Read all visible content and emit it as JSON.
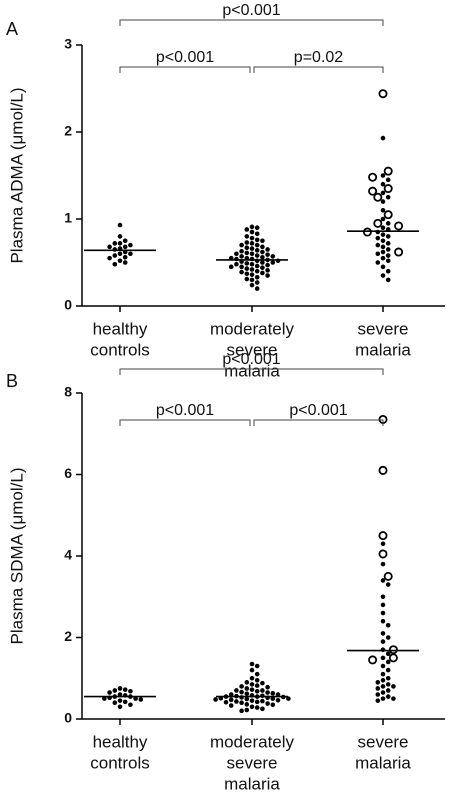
{
  "chart_data": [
    {
      "type": "dot",
      "panel": "A",
      "y_label": "Plasma ADMA (μmol/L)",
      "categories": [
        [
          "healthy",
          "controls"
        ],
        [
          "moderately",
          "severe",
          "malaria"
        ],
        [
          "severe",
          "malaria"
        ]
      ],
      "ylim": [
        0,
        3
      ],
      "yticks": [
        0,
        1,
        2,
        3
      ],
      "groups": [
        {
          "values": [
            0.93,
            0.8,
            0.75,
            0.72,
            0.72,
            0.7,
            0.68,
            0.68,
            0.66,
            0.65,
            0.62,
            0.6,
            0.6,
            0.58,
            0.56,
            0.55,
            0.52,
            0.5,
            0.48
          ],
          "open_values": [],
          "median": 0.64
        },
        {
          "values": [
            0.91,
            0.9,
            0.88,
            0.85,
            0.83,
            0.8,
            0.78,
            0.76,
            0.75,
            0.73,
            0.72,
            0.7,
            0.7,
            0.68,
            0.67,
            0.66,
            0.65,
            0.64,
            0.63,
            0.62,
            0.61,
            0.6,
            0.6,
            0.59,
            0.58,
            0.57,
            0.57,
            0.56,
            0.55,
            0.55,
            0.54,
            0.54,
            0.53,
            0.52,
            0.52,
            0.51,
            0.5,
            0.5,
            0.49,
            0.48,
            0.48,
            0.47,
            0.46,
            0.45,
            0.45,
            0.44,
            0.43,
            0.42,
            0.41,
            0.4,
            0.39,
            0.38,
            0.37,
            0.36,
            0.35,
            0.33,
            0.31,
            0.3,
            0.27,
            0.24,
            0.2
          ],
          "open_values": [],
          "median": 0.53
        },
        {
          "values": [
            1.93,
            1.5,
            1.45,
            1.4,
            1.3,
            1.25,
            1.2,
            1.1,
            1.0,
            0.95,
            0.9,
            0.88,
            0.85,
            0.82,
            0.8,
            0.78,
            0.75,
            0.72,
            0.7,
            0.68,
            0.65,
            0.62,
            0.6,
            0.58,
            0.55,
            0.52,
            0.5,
            0.45,
            0.4,
            0.35,
            0.3
          ],
          "open_values": [
            2.44,
            1.55,
            1.48,
            1.35,
            1.32,
            1.25,
            1.05,
            0.95,
            0.92,
            0.85,
            0.62
          ],
          "median": 0.86
        }
      ],
      "comparisons": [
        {
          "groups": [
            0,
            2
          ],
          "label": "p<0.001"
        },
        {
          "groups": [
            0,
            1
          ],
          "label": "p<0.001"
        },
        {
          "groups": [
            1,
            2
          ],
          "label": "p=0.02"
        }
      ]
    },
    {
      "type": "dot",
      "panel": "B",
      "y_label": "Plasma SDMA (μmol/L)",
      "categories": [
        [
          "healthy",
          "controls"
        ],
        [
          "moderately",
          "severe",
          "malaria"
        ],
        [
          "severe",
          "malaria"
        ]
      ],
      "ylim": [
        0,
        8
      ],
      "yticks": [
        0,
        2,
        4,
        6,
        8
      ],
      "groups": [
        {
          "values": [
            0.75,
            0.72,
            0.7,
            0.68,
            0.65,
            0.6,
            0.58,
            0.55,
            0.55,
            0.52,
            0.5,
            0.5,
            0.48,
            0.45,
            0.42,
            0.4,
            0.35,
            0.3
          ],
          "open_values": [],
          "median": 0.55
        },
        {
          "values": [
            1.35,
            1.3,
            1.2,
            1.1,
            1.0,
            0.95,
            0.9,
            0.88,
            0.85,
            0.82,
            0.8,
            0.78,
            0.75,
            0.72,
            0.7,
            0.7,
            0.68,
            0.66,
            0.65,
            0.63,
            0.62,
            0.6,
            0.6,
            0.58,
            0.57,
            0.56,
            0.55,
            0.55,
            0.54,
            0.53,
            0.52,
            0.51,
            0.5,
            0.5,
            0.49,
            0.48,
            0.47,
            0.46,
            0.45,
            0.44,
            0.43,
            0.42,
            0.41,
            0.4,
            0.38,
            0.36,
            0.35,
            0.33,
            0.3,
            0.28,
            0.25,
            0.22,
            0.2
          ],
          "open_values": [],
          "median": 0.55
        },
        {
          "values": [
            4.3,
            3.8,
            3.4,
            3.3,
            3.0,
            2.8,
            2.6,
            2.4,
            2.3,
            2.1,
            2.0,
            1.9,
            1.7,
            1.6,
            1.5,
            1.4,
            1.3,
            1.2,
            1.1,
            1.0,
            0.95,
            0.9,
            0.85,
            0.8,
            0.8,
            0.75,
            0.7,
            0.65,
            0.6,
            0.55,
            0.5,
            0.5,
            0.45
          ],
          "open_values": [
            7.35,
            6.1,
            4.5,
            4.05,
            3.5,
            1.7,
            1.5,
            1.45
          ],
          "median": 1.68
        }
      ],
      "comparisons": [
        {
          "groups": [
            0,
            2
          ],
          "label": "p<0.001"
        },
        {
          "groups": [
            0,
            1
          ],
          "label": "p<0.001"
        },
        {
          "groups": [
            1,
            2
          ],
          "label": "p<0.001"
        }
      ]
    }
  ]
}
